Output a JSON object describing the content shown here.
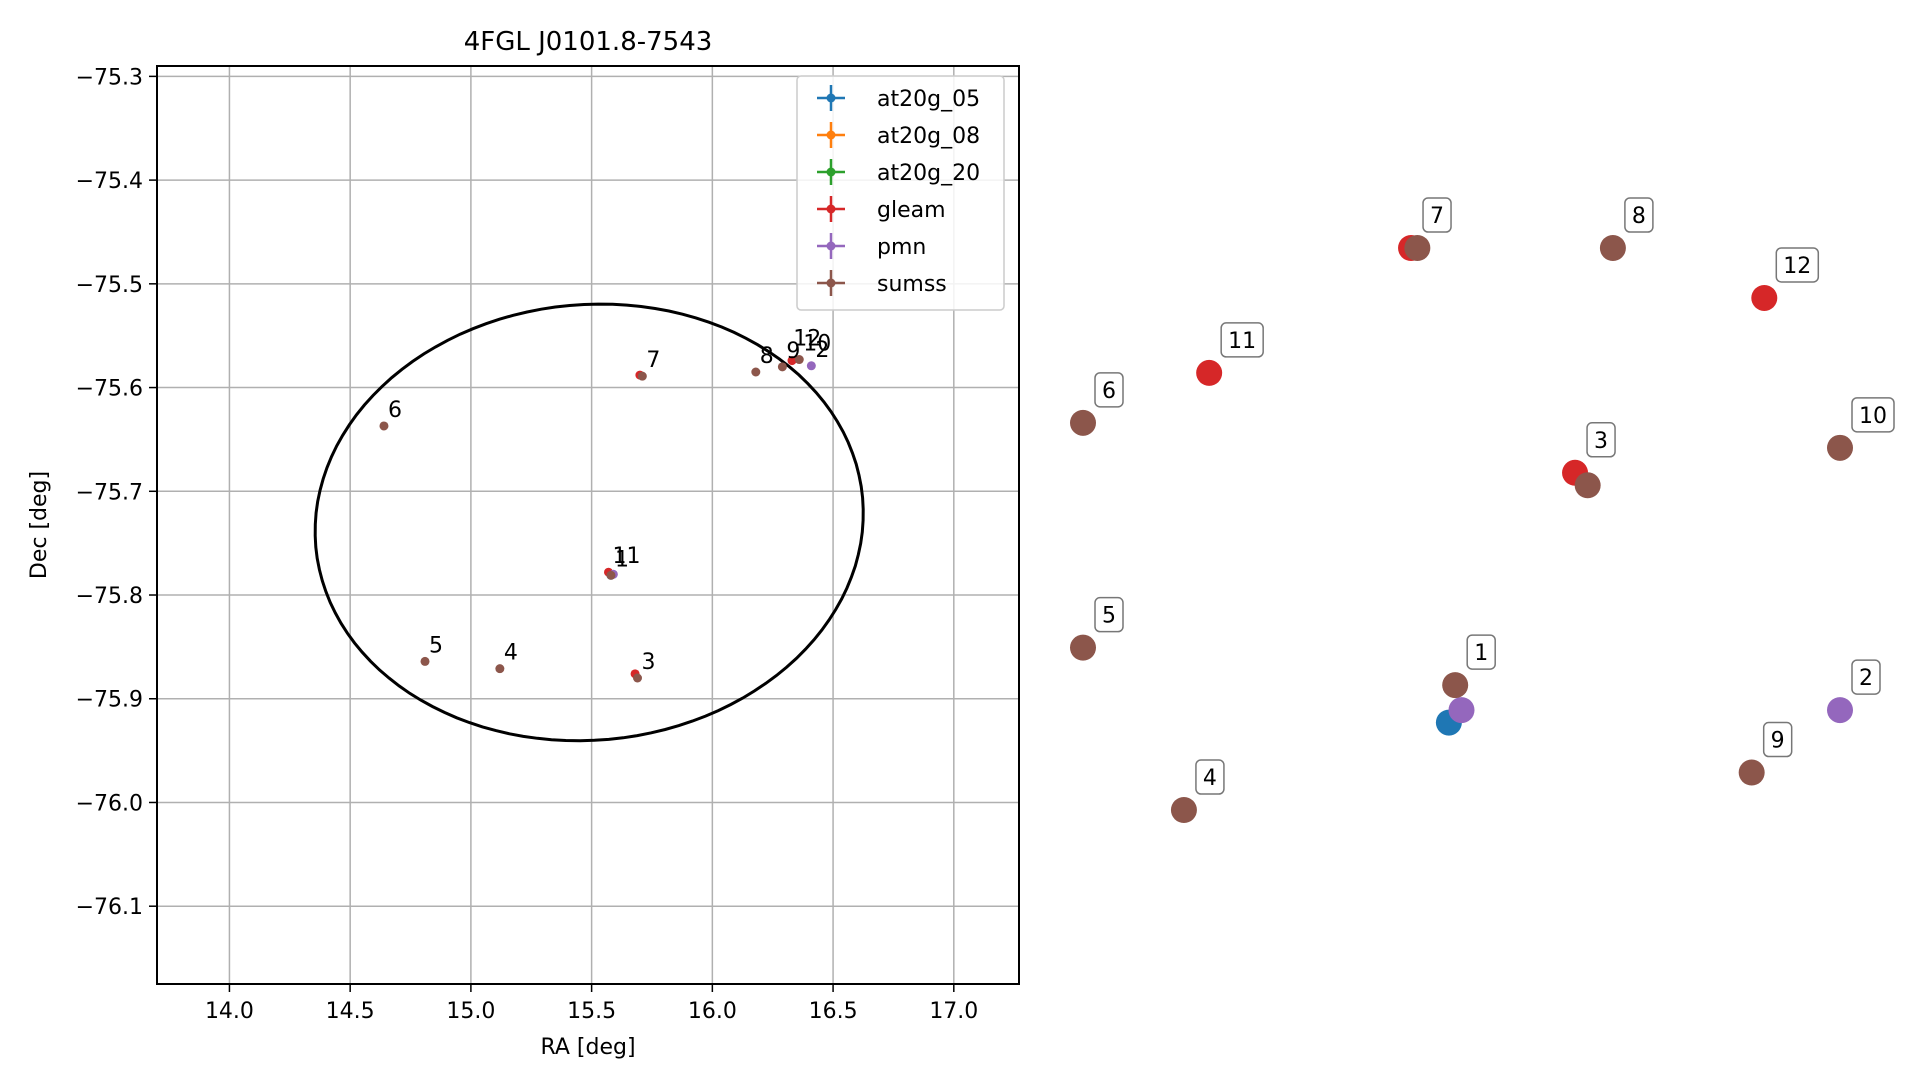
{
  "chart_data": [
    {
      "type": "scatter",
      "title": "4FGL J0101.8-7543",
      "xlabel": "RA [deg]",
      "ylabel": "Dec [deg]",
      "xlim": [
        13.7,
        17.27
      ],
      "ylim": [
        -76.175,
        -75.29
      ],
      "grid": true,
      "legend_position": "top-right",
      "xticks": [
        "14.0",
        "14.5",
        "15.0",
        "15.5",
        "16.0",
        "16.5",
        "17.0"
      ],
      "xtick_values": [
        14.0,
        14.5,
        15.0,
        15.5,
        16.0,
        16.5,
        17.0
      ],
      "yticks": [
        "−75.3",
        "−75.4",
        "−75.5",
        "−75.6",
        "−75.7",
        "−75.8",
        "−75.9",
        "−76.0",
        "−76.1"
      ],
      "ytick_values": [
        -75.3,
        -75.4,
        -75.5,
        -75.6,
        -75.7,
        -75.8,
        -75.9,
        -76.0,
        -76.1
      ],
      "ellipse": {
        "center_ra": 15.49,
        "center_dec": -75.73,
        "ra_radius": 1.16,
        "dec_radius": 0.21,
        "color": "#000000"
      },
      "series": [
        {
          "name": "at20g_05",
          "color": "#1f77b4",
          "points": [
            {
              "ra": 15.58,
              "dec": -75.781,
              "label": ""
            }
          ]
        },
        {
          "name": "at20g_08",
          "color": "#ff7f0e",
          "points": []
        },
        {
          "name": "at20g_20",
          "color": "#2ca02c",
          "points": []
        },
        {
          "name": "gleam",
          "color": "#d62728",
          "points": [
            {
              "ra": 15.7,
              "dec": -75.588,
              "label": ""
            },
            {
              "ra": 15.68,
              "dec": -75.876,
              "label": ""
            },
            {
              "ra": 15.57,
              "dec": -75.778,
              "label": "11"
            },
            {
              "ra": 16.33,
              "dec": -75.574,
              "label": ""
            }
          ]
        },
        {
          "name": "pmn",
          "color": "#9467bd",
          "points": [
            {
              "ra": 15.59,
              "dec": -75.78,
              "label": ""
            },
            {
              "ra": 16.41,
              "dec": -75.579,
              "label": "2"
            }
          ]
        },
        {
          "name": "sumss",
          "color": "#8c564b",
          "points": [
            {
              "ra": 15.58,
              "dec": -75.781,
              "label": "1"
            },
            {
              "ra": 15.69,
              "dec": -75.88,
              "label": "3"
            },
            {
              "ra": 15.12,
              "dec": -75.871,
              "label": "4"
            },
            {
              "ra": 14.81,
              "dec": -75.864,
              "label": "5"
            },
            {
              "ra": 14.64,
              "dec": -75.637,
              "label": "6"
            },
            {
              "ra": 15.71,
              "dec": -75.589,
              "label": "7"
            },
            {
              "ra": 16.18,
              "dec": -75.585,
              "label": "8"
            },
            {
              "ra": 16.29,
              "dec": -75.58,
              "label": "9"
            },
            {
              "ra": 16.36,
              "dec": -75.573,
              "label": "10"
            }
          ]
        }
      ],
      "annotations": [
        {
          "text": "12",
          "ra": 16.36,
          "dec": -75.565
        }
      ]
    },
    {
      "type": "scatter",
      "title": "",
      "xlabel": "",
      "ylabel": "",
      "grid": false,
      "series": [
        {
          "name": "at20g_05",
          "color": "#1f77b4",
          "points": [
            {
              "x": 0.3,
              "y": 1.2,
              "label": ""
            }
          ]
        },
        {
          "name": "gleam",
          "color": "#d62728",
          "points": [
            {
              "x": 1.3,
              "y": 3.2,
              "label": "3"
            },
            {
              "x": 0.0,
              "y": 5.0,
              "label": "7"
            },
            {
              "x": -1.6,
              "y": 4.0,
              "label": "11"
            },
            {
              "x": 2.8,
              "y": 4.6,
              "label": "12"
            }
          ]
        },
        {
          "name": "pmn",
          "color": "#9467bd",
          "points": [
            {
              "x": 0.4,
              "y": 1.3,
              "label": ""
            },
            {
              "x": 3.4,
              "y": 1.3,
              "label": "2"
            }
          ]
        },
        {
          "name": "sumss",
          "color": "#8c564b",
          "points": [
            {
              "x": 0.35,
              "y": 1.5,
              "label": "1"
            },
            {
              "x": 1.4,
              "y": 3.1,
              "label": ""
            },
            {
              "x": -1.8,
              "y": 0.5,
              "label": "4"
            },
            {
              "x": -2.6,
              "y": 1.8,
              "label": "5"
            },
            {
              "x": -2.6,
              "y": 3.6,
              "label": "6"
            },
            {
              "x": 0.05,
              "y": 5.0,
              "label": ""
            },
            {
              "x": 1.6,
              "y": 5.0,
              "label": "8"
            },
            {
              "x": 2.7,
              "y": 0.8,
              "label": "9"
            },
            {
              "x": 3.4,
              "y": 3.4,
              "label": "10"
            }
          ]
        }
      ]
    }
  ]
}
